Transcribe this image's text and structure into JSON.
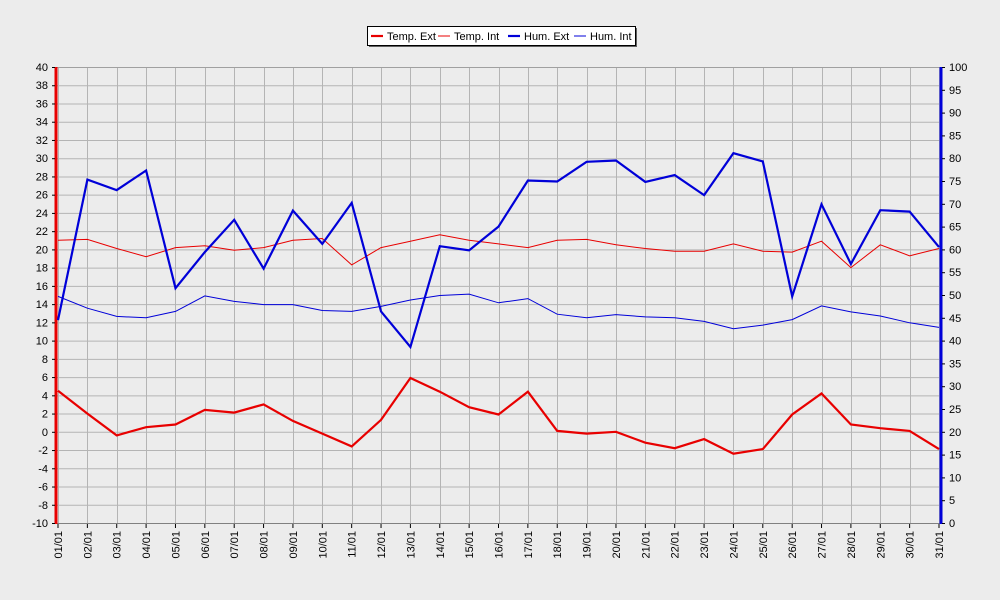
{
  "chart_data": {
    "type": "line",
    "title": "",
    "x": [
      "01/01",
      "02/01",
      "03/01",
      "04/01",
      "05/01",
      "06/01",
      "07/01",
      "08/01",
      "09/01",
      "10/01",
      "11/01",
      "12/01",
      "13/01",
      "14/01",
      "15/01",
      "16/01",
      "17/01",
      "18/01",
      "19/01",
      "20/01",
      "21/01",
      "22/01",
      "23/01",
      "24/01",
      "25/01",
      "26/01",
      "27/01",
      "28/01",
      "29/01",
      "30/01",
      "31/01"
    ],
    "y_left": {
      "ylim": [
        -10,
        40
      ],
      "ticks": [
        -10,
        -8,
        -6,
        -4,
        -2,
        0,
        2,
        4,
        6,
        8,
        10,
        12,
        14,
        16,
        18,
        20,
        22,
        24,
        26,
        28,
        30,
        32,
        34,
        36,
        38,
        40
      ]
    },
    "y_right": {
      "ylim": [
        0,
        100
      ],
      "ticks": [
        0,
        5,
        10,
        15,
        20,
        25,
        30,
        35,
        40,
        45,
        50,
        55,
        60,
        65,
        70,
        75,
        80,
        85,
        90,
        95,
        100
      ]
    },
    "grid": true,
    "legend_position": "top-center",
    "series": [
      {
        "name": "Temp. Ext",
        "axis": "left",
        "color": "#e80000",
        "width": "thick",
        "values": [
          4.5,
          2.0,
          -0.4,
          0.5,
          0.8,
          2.4,
          2.1,
          3.0,
          1.2,
          -0.2,
          -1.6,
          1.3,
          5.9,
          4.4,
          2.7,
          1.9,
          4.4,
          0.1,
          -0.2,
          0.0,
          -1.2,
          -1.8,
          -0.8,
          -2.4,
          -1.9,
          1.9,
          4.2,
          0.8,
          0.4,
          0.1,
          -1.9
        ]
      },
      {
        "name": "Temp. Int",
        "axis": "left",
        "color": "#e80000",
        "width": "thin",
        "values": [
          21.0,
          21.1,
          20.1,
          19.2,
          20.2,
          20.4,
          19.9,
          20.2,
          21.0,
          21.2,
          18.3,
          20.2,
          20.9,
          21.6,
          21.0,
          20.6,
          20.2,
          21.0,
          21.1,
          20.5,
          20.1,
          19.8,
          19.8,
          20.6,
          19.8,
          19.7,
          20.9,
          18.0,
          20.5,
          19.3,
          20.1
        ]
      },
      {
        "name": "Hum. Ext",
        "axis": "right",
        "color": "#0000d8",
        "width": "thick",
        "values": [
          44.5,
          75.3,
          73.0,
          77.3,
          51.5,
          59.4,
          66.5,
          55.8,
          68.5,
          61.2,
          70.2,
          46.4,
          38.6,
          60.7,
          59.8,
          65.0,
          75.1,
          74.9,
          79.2,
          79.5,
          74.8,
          76.3,
          71.9,
          81.1,
          79.3,
          49.7,
          69.9,
          56.8,
          68.6,
          68.3,
          60.5
        ]
      },
      {
        "name": "Hum. Int",
        "axis": "right",
        "color": "#0000d8",
        "width": "thin",
        "values": [
          49.7,
          47.1,
          45.3,
          45.0,
          46.4,
          49.8,
          48.6,
          47.9,
          47.9,
          46.6,
          46.4,
          47.5,
          48.9,
          49.9,
          50.2,
          48.3,
          49.2,
          45.8,
          45.0,
          45.7,
          45.2,
          45.0,
          44.2,
          42.6,
          43.4,
          44.6,
          47.6,
          46.3,
          45.4,
          43.9,
          42.9
        ]
      }
    ]
  }
}
